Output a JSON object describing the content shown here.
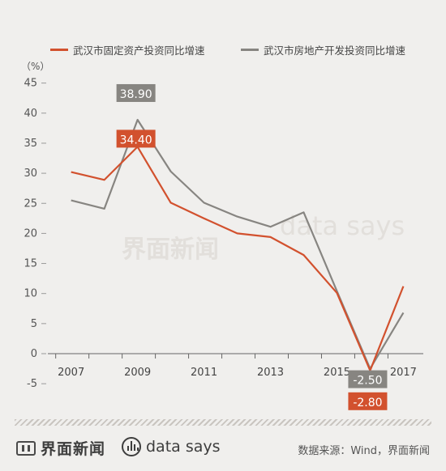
{
  "chart_data": {
    "type": "line",
    "unit_label": "（%）",
    "x": [
      2007,
      2008,
      2009,
      2010,
      2011,
      2012,
      2013,
      2014,
      2015,
      2016,
      2017
    ],
    "x_tick_labels": [
      "2007",
      "2009",
      "2011",
      "2013",
      "2015",
      "2017"
    ],
    "y_ticks": [
      45,
      40,
      35,
      30,
      25,
      20,
      15,
      10,
      5,
      0,
      -5
    ],
    "ylim": [
      -5,
      45
    ],
    "series": [
      {
        "name": "武汉市固定资产投资同比增速",
        "color": "#d2512e",
        "values": [
          30.2,
          28.9,
          34.4,
          25.1,
          22.5,
          20.0,
          19.4,
          16.4,
          10.1,
          -2.8,
          11.2
        ]
      },
      {
        "name": "武汉市房地产开发投资同比增速",
        "color": "#878581",
        "values": [
          25.5,
          24.1,
          38.9,
          30.3,
          25.1,
          22.8,
          21.1,
          23.5,
          10.4,
          -2.5,
          6.8
        ]
      }
    ],
    "annotations": [
      {
        "text": "38.90",
        "x": 2009,
        "y": 38.9,
        "series": 1
      },
      {
        "text": "34.40",
        "x": 2009,
        "y": 34.4,
        "series": 0
      },
      {
        "text": "-2.50",
        "x": 2016,
        "y": -2.5,
        "series": 1
      },
      {
        "text": "-2.80",
        "x": 2016,
        "y": -2.8,
        "series": 0
      }
    ]
  },
  "watermark": {
    "brand": "界面新闻",
    "ds": "data says"
  },
  "footer": {
    "brand": "界面新闻",
    "ds": "data says",
    "source": "数据来源：Wind，界面新闻"
  },
  "colors": {
    "orange": "#d2512e",
    "gray": "#878581",
    "background": "#f0efed"
  }
}
